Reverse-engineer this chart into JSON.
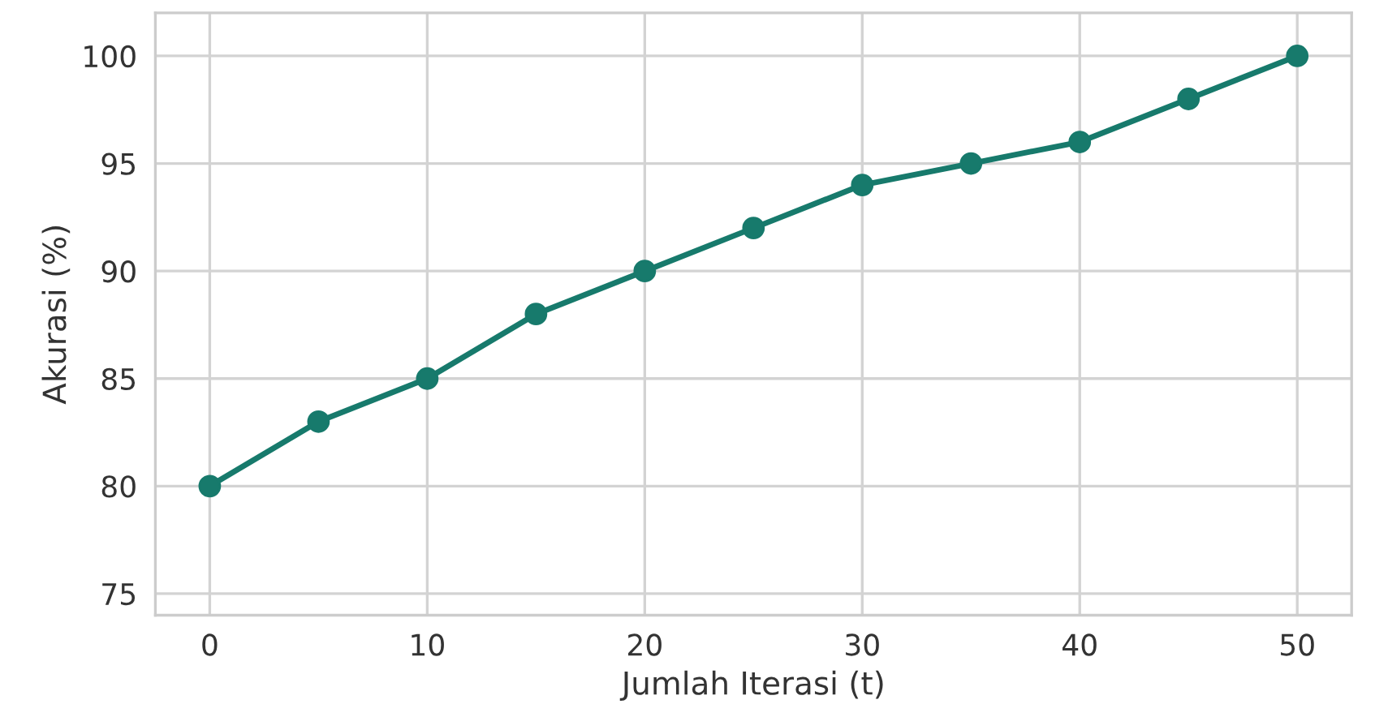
{
  "chart_data": {
    "type": "line",
    "xlabel": "Jumlah Iterasi (t)",
    "ylabel": "Akurasi (%)",
    "x": [
      0,
      5,
      10,
      15,
      20,
      25,
      30,
      35,
      40,
      45,
      50
    ],
    "series": [
      {
        "color": "#177a6c",
        "values": [
          80,
          83,
          85,
          88,
          90,
          92,
          94,
          95,
          96,
          98,
          100
        ]
      }
    ],
    "xlim": [
      -2.5,
      52.5
    ],
    "ylim": [
      74,
      102
    ],
    "xticks": [
      0,
      10,
      20,
      30,
      40,
      50
    ],
    "yticks": [
      75,
      80,
      85,
      90,
      95,
      100
    ],
    "grid": true,
    "marker": "circle",
    "line_style": "solid"
  }
}
